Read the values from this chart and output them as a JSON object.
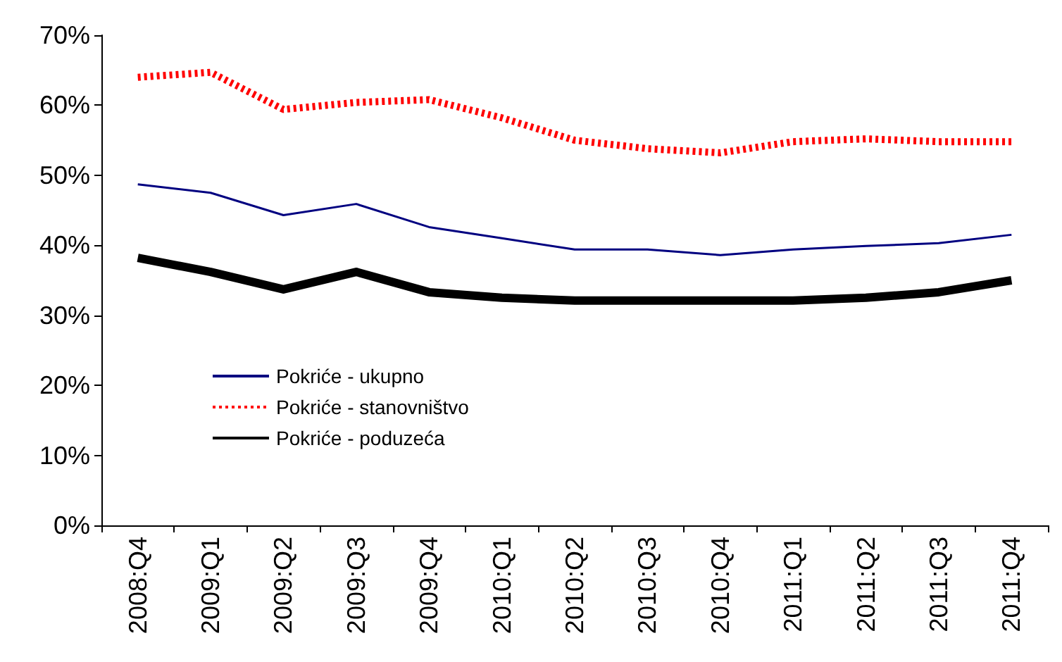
{
  "chart_data": {
    "type": "line",
    "categories": [
      "2008:Q4",
      "2009:Q1",
      "2009:Q2",
      "2009:Q3",
      "2009:Q4",
      "2010:Q1",
      "2010:Q2",
      "2010:Q3",
      "2010:Q4",
      "2011:Q1",
      "2011:Q2",
      "2011:Q3",
      "2011:Q4"
    ],
    "series": [
      {
        "name": "Pokriće - ukupno",
        "color": "#000080",
        "line_style": "solid",
        "values": [
          48.7,
          47.5,
          44.3,
          45.9,
          42.6,
          41,
          39.4,
          39.4,
          38.6,
          39.4,
          39.9,
          40.3,
          41.5
        ]
      },
      {
        "name": "Pokriće - stanovništvo",
        "color": "#ff0000",
        "line_style": "dashed",
        "values": [
          64,
          64.7,
          59.4,
          60.4,
          60.8,
          58.2,
          55,
          53.8,
          53.2,
          54.8,
          55.2,
          54.8,
          54.8
        ]
      },
      {
        "name": "Pokriće - poduzeća",
        "color": "#000000",
        "line_style": "solid",
        "values": [
          38.2,
          36.2,
          33.7,
          36.2,
          33.3,
          32.5,
          32.1,
          32.1,
          32.1,
          32.1,
          32.5,
          33.3,
          35
        ]
      }
    ],
    "ylim": [
      0,
      70
    ],
    "yticks": [
      {
        "value": 0,
        "label": "0%"
      },
      {
        "value": 10,
        "label": "10%"
      },
      {
        "value": 20,
        "label": "20%"
      },
      {
        "value": 30,
        "label": "30%"
      },
      {
        "value": 40,
        "label": "40%"
      },
      {
        "value": 50,
        "label": "50%"
      },
      {
        "value": 60,
        "label": "60%"
      },
      {
        "value": 70,
        "label": "70%"
      }
    ],
    "grid": false,
    "legend": "bottom left",
    "marker": "none"
  }
}
